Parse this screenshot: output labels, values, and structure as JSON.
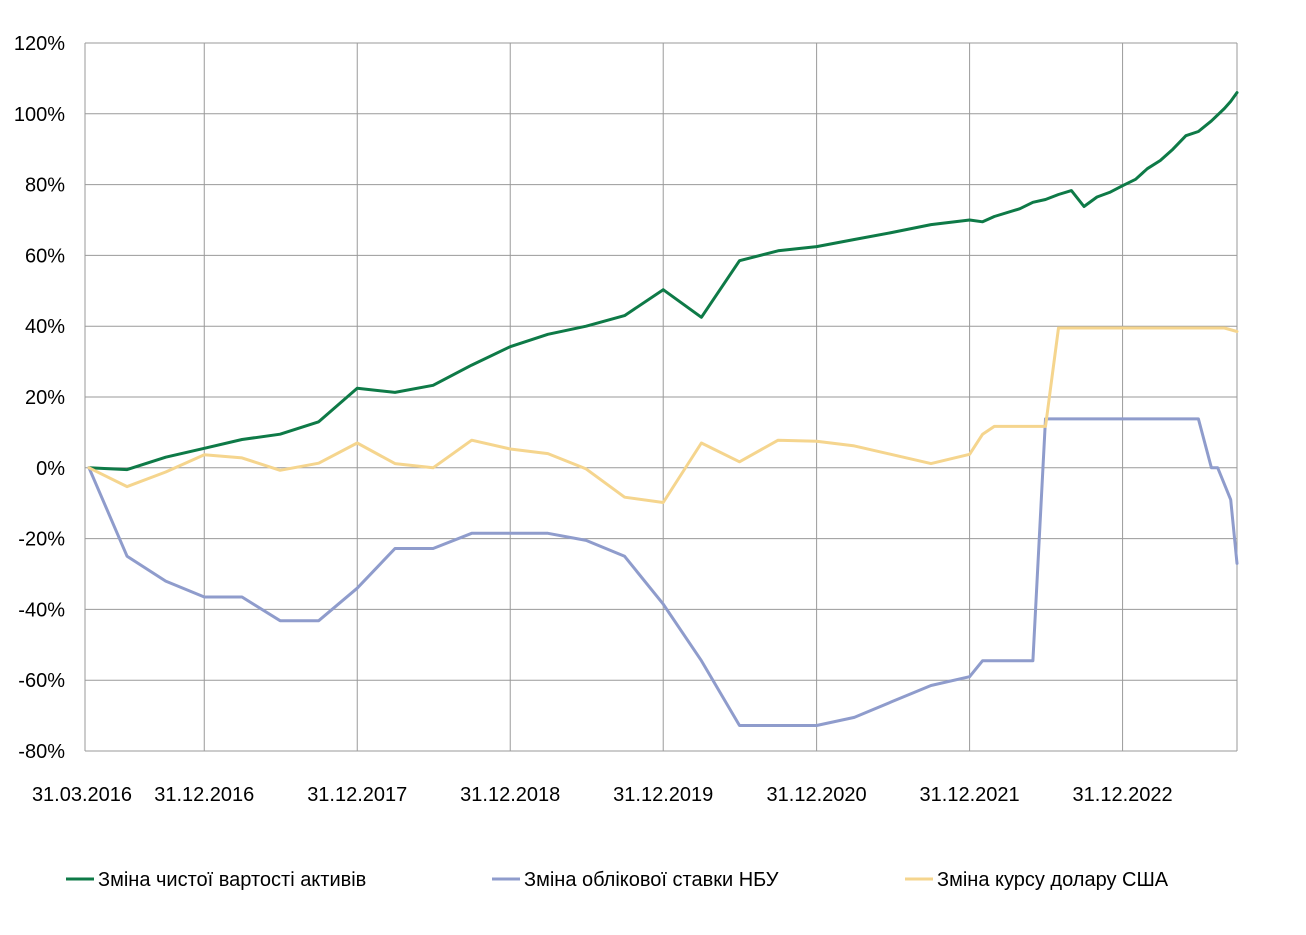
{
  "chart_data": {
    "type": "line",
    "title": "",
    "xlabel": "",
    "ylabel": "",
    "ylim": [
      -80,
      120
    ],
    "xlim": [
      "2016-03-31",
      "2023-09-30"
    ],
    "y_ticks": [
      "120%",
      "100%",
      "80%",
      "60%",
      "40%",
      "20%",
      "0%",
      "-20%",
      "-40%",
      "-60%",
      "-80%"
    ],
    "x_ticks": [
      {
        "date": "2016-03-31",
        "label": "31.03.2016"
      },
      {
        "date": "2016-12-31",
        "label": "31.12.2016"
      },
      {
        "date": "2017-12-31",
        "label": "31.12.2017"
      },
      {
        "date": "2018-12-31",
        "label": "31.12.2018"
      },
      {
        "date": "2019-12-31",
        "label": "31.12.2019"
      },
      {
        "date": "2020-12-31",
        "label": "31.12.2020"
      },
      {
        "date": "2021-12-31",
        "label": "31.12.2021"
      },
      {
        "date": "2022-12-31",
        "label": "31.12.2022"
      }
    ],
    "gridlines": {
      "vertical": true,
      "horizontal": true
    },
    "legend_position": "bottom",
    "series": [
      {
        "name": "Зміна чистої вартості активів",
        "color": "#0e7a47",
        "points": [
          [
            "2016-03-31",
            0
          ],
          [
            "2016-06-30",
            -0.5
          ],
          [
            "2016-09-30",
            3
          ],
          [
            "2016-12-31",
            5.5
          ],
          [
            "2017-03-31",
            8
          ],
          [
            "2017-06-30",
            9.5
          ],
          [
            "2017-09-30",
            13
          ],
          [
            "2017-12-31",
            22.5
          ],
          [
            "2018-03-31",
            21.3
          ],
          [
            "2018-06-30",
            23.3
          ],
          [
            "2018-09-30",
            29
          ],
          [
            "2018-12-31",
            34.2
          ],
          [
            "2019-03-31",
            37.7
          ],
          [
            "2019-06-30",
            40
          ],
          [
            "2019-09-30",
            43
          ],
          [
            "2019-12-31",
            50.3
          ],
          [
            "2020-03-31",
            42.5
          ],
          [
            "2020-06-30",
            58.5
          ],
          [
            "2020-09-30",
            61.3
          ],
          [
            "2020-12-31",
            62.5
          ],
          [
            "2021-03-31",
            64.5
          ],
          [
            "2021-06-30",
            66.5
          ],
          [
            "2021-09-30",
            68.7
          ],
          [
            "2021-12-31",
            70
          ],
          [
            "2022-01-31",
            69.5
          ],
          [
            "2022-02-28",
            71
          ],
          [
            "2022-04-30",
            73.2
          ],
          [
            "2022-05-31",
            75
          ],
          [
            "2022-06-30",
            75.8
          ],
          [
            "2022-07-31",
            77.2
          ],
          [
            "2022-08-31",
            78.3
          ],
          [
            "2022-09-30",
            73.8
          ],
          [
            "2022-10-31",
            76.5
          ],
          [
            "2022-11-30",
            77.8
          ],
          [
            "2022-12-31",
            79.7
          ],
          [
            "2023-01-31",
            81.5
          ],
          [
            "2023-02-28",
            84.5
          ],
          [
            "2023-03-31",
            86.8
          ],
          [
            "2023-04-30",
            90
          ],
          [
            "2023-05-31",
            93.8
          ],
          [
            "2023-06-30",
            95
          ],
          [
            "2023-07-31",
            98
          ],
          [
            "2023-08-31",
            101.5
          ],
          [
            "2023-09-15",
            103.5
          ],
          [
            "2023-09-30",
            106
          ]
        ]
      },
      {
        "name": "Зміна облікової ставки НБУ",
        "color": "#8f9ccc",
        "points": [
          [
            "2016-03-31",
            0
          ],
          [
            "2016-06-30",
            -25
          ],
          [
            "2016-09-30",
            -32
          ],
          [
            "2016-12-31",
            -36.5
          ],
          [
            "2017-03-31",
            -36.5
          ],
          [
            "2017-06-30",
            -43.2
          ],
          [
            "2017-09-30",
            -43.2
          ],
          [
            "2017-12-31",
            -34
          ],
          [
            "2018-03-31",
            -22.8
          ],
          [
            "2018-06-30",
            -22.8
          ],
          [
            "2018-09-30",
            -18.5
          ],
          [
            "2018-12-31",
            -18.5
          ],
          [
            "2019-03-31",
            -18.5
          ],
          [
            "2019-06-30",
            -20.5
          ],
          [
            "2019-09-30",
            -25
          ],
          [
            "2019-12-31",
            -38.5
          ],
          [
            "2020-03-31",
            -54.5
          ],
          [
            "2020-06-30",
            -72.8
          ],
          [
            "2020-09-30",
            -72.8
          ],
          [
            "2020-12-31",
            -72.8
          ],
          [
            "2021-03-31",
            -70.5
          ],
          [
            "2021-06-30",
            -66
          ],
          [
            "2021-09-30",
            -61.5
          ],
          [
            "2021-12-31",
            -59
          ],
          [
            "2022-01-31",
            -54.5
          ],
          [
            "2022-05-31",
            -54.5
          ],
          [
            "2022-06-30",
            13.8
          ],
          [
            "2023-06-30",
            13.8
          ],
          [
            "2023-07-31",
            0
          ],
          [
            "2023-08-15",
            0
          ],
          [
            "2023-09-15",
            -9
          ],
          [
            "2023-09-30",
            -27
          ]
        ]
      },
      {
        "name": "Зміна курсу долару США",
        "color": "#f5d58e",
        "points": [
          [
            "2016-03-31",
            0
          ],
          [
            "2016-06-30",
            -5.3
          ],
          [
            "2016-09-30",
            -1.2
          ],
          [
            "2016-12-31",
            3.7
          ],
          [
            "2017-03-31",
            2.8
          ],
          [
            "2017-06-30",
            -0.7
          ],
          [
            "2017-09-30",
            1.3
          ],
          [
            "2017-12-31",
            7
          ],
          [
            "2018-03-31",
            1.2
          ],
          [
            "2018-06-30",
            0
          ],
          [
            "2018-09-30",
            7.8
          ],
          [
            "2018-12-31",
            5.3
          ],
          [
            "2019-03-31",
            4
          ],
          [
            "2019-06-30",
            -0.3
          ],
          [
            "2019-09-30",
            -8.3
          ],
          [
            "2019-12-31",
            -9.8
          ],
          [
            "2020-03-31",
            7
          ],
          [
            "2020-06-30",
            1.7
          ],
          [
            "2020-09-30",
            7.8
          ],
          [
            "2020-12-31",
            7.5
          ],
          [
            "2021-03-31",
            6.2
          ],
          [
            "2021-06-30",
            3.7
          ],
          [
            "2021-09-30",
            1.2
          ],
          [
            "2021-12-31",
            3.8
          ],
          [
            "2022-01-31",
            9.5
          ],
          [
            "2022-02-28",
            11.7
          ],
          [
            "2022-05-31",
            11.7
          ],
          [
            "2022-06-30",
            11.7
          ],
          [
            "2022-07-31",
            39.5
          ],
          [
            "2023-08-31",
            39.5
          ],
          [
            "2023-09-30",
            38.5
          ]
        ]
      }
    ]
  }
}
